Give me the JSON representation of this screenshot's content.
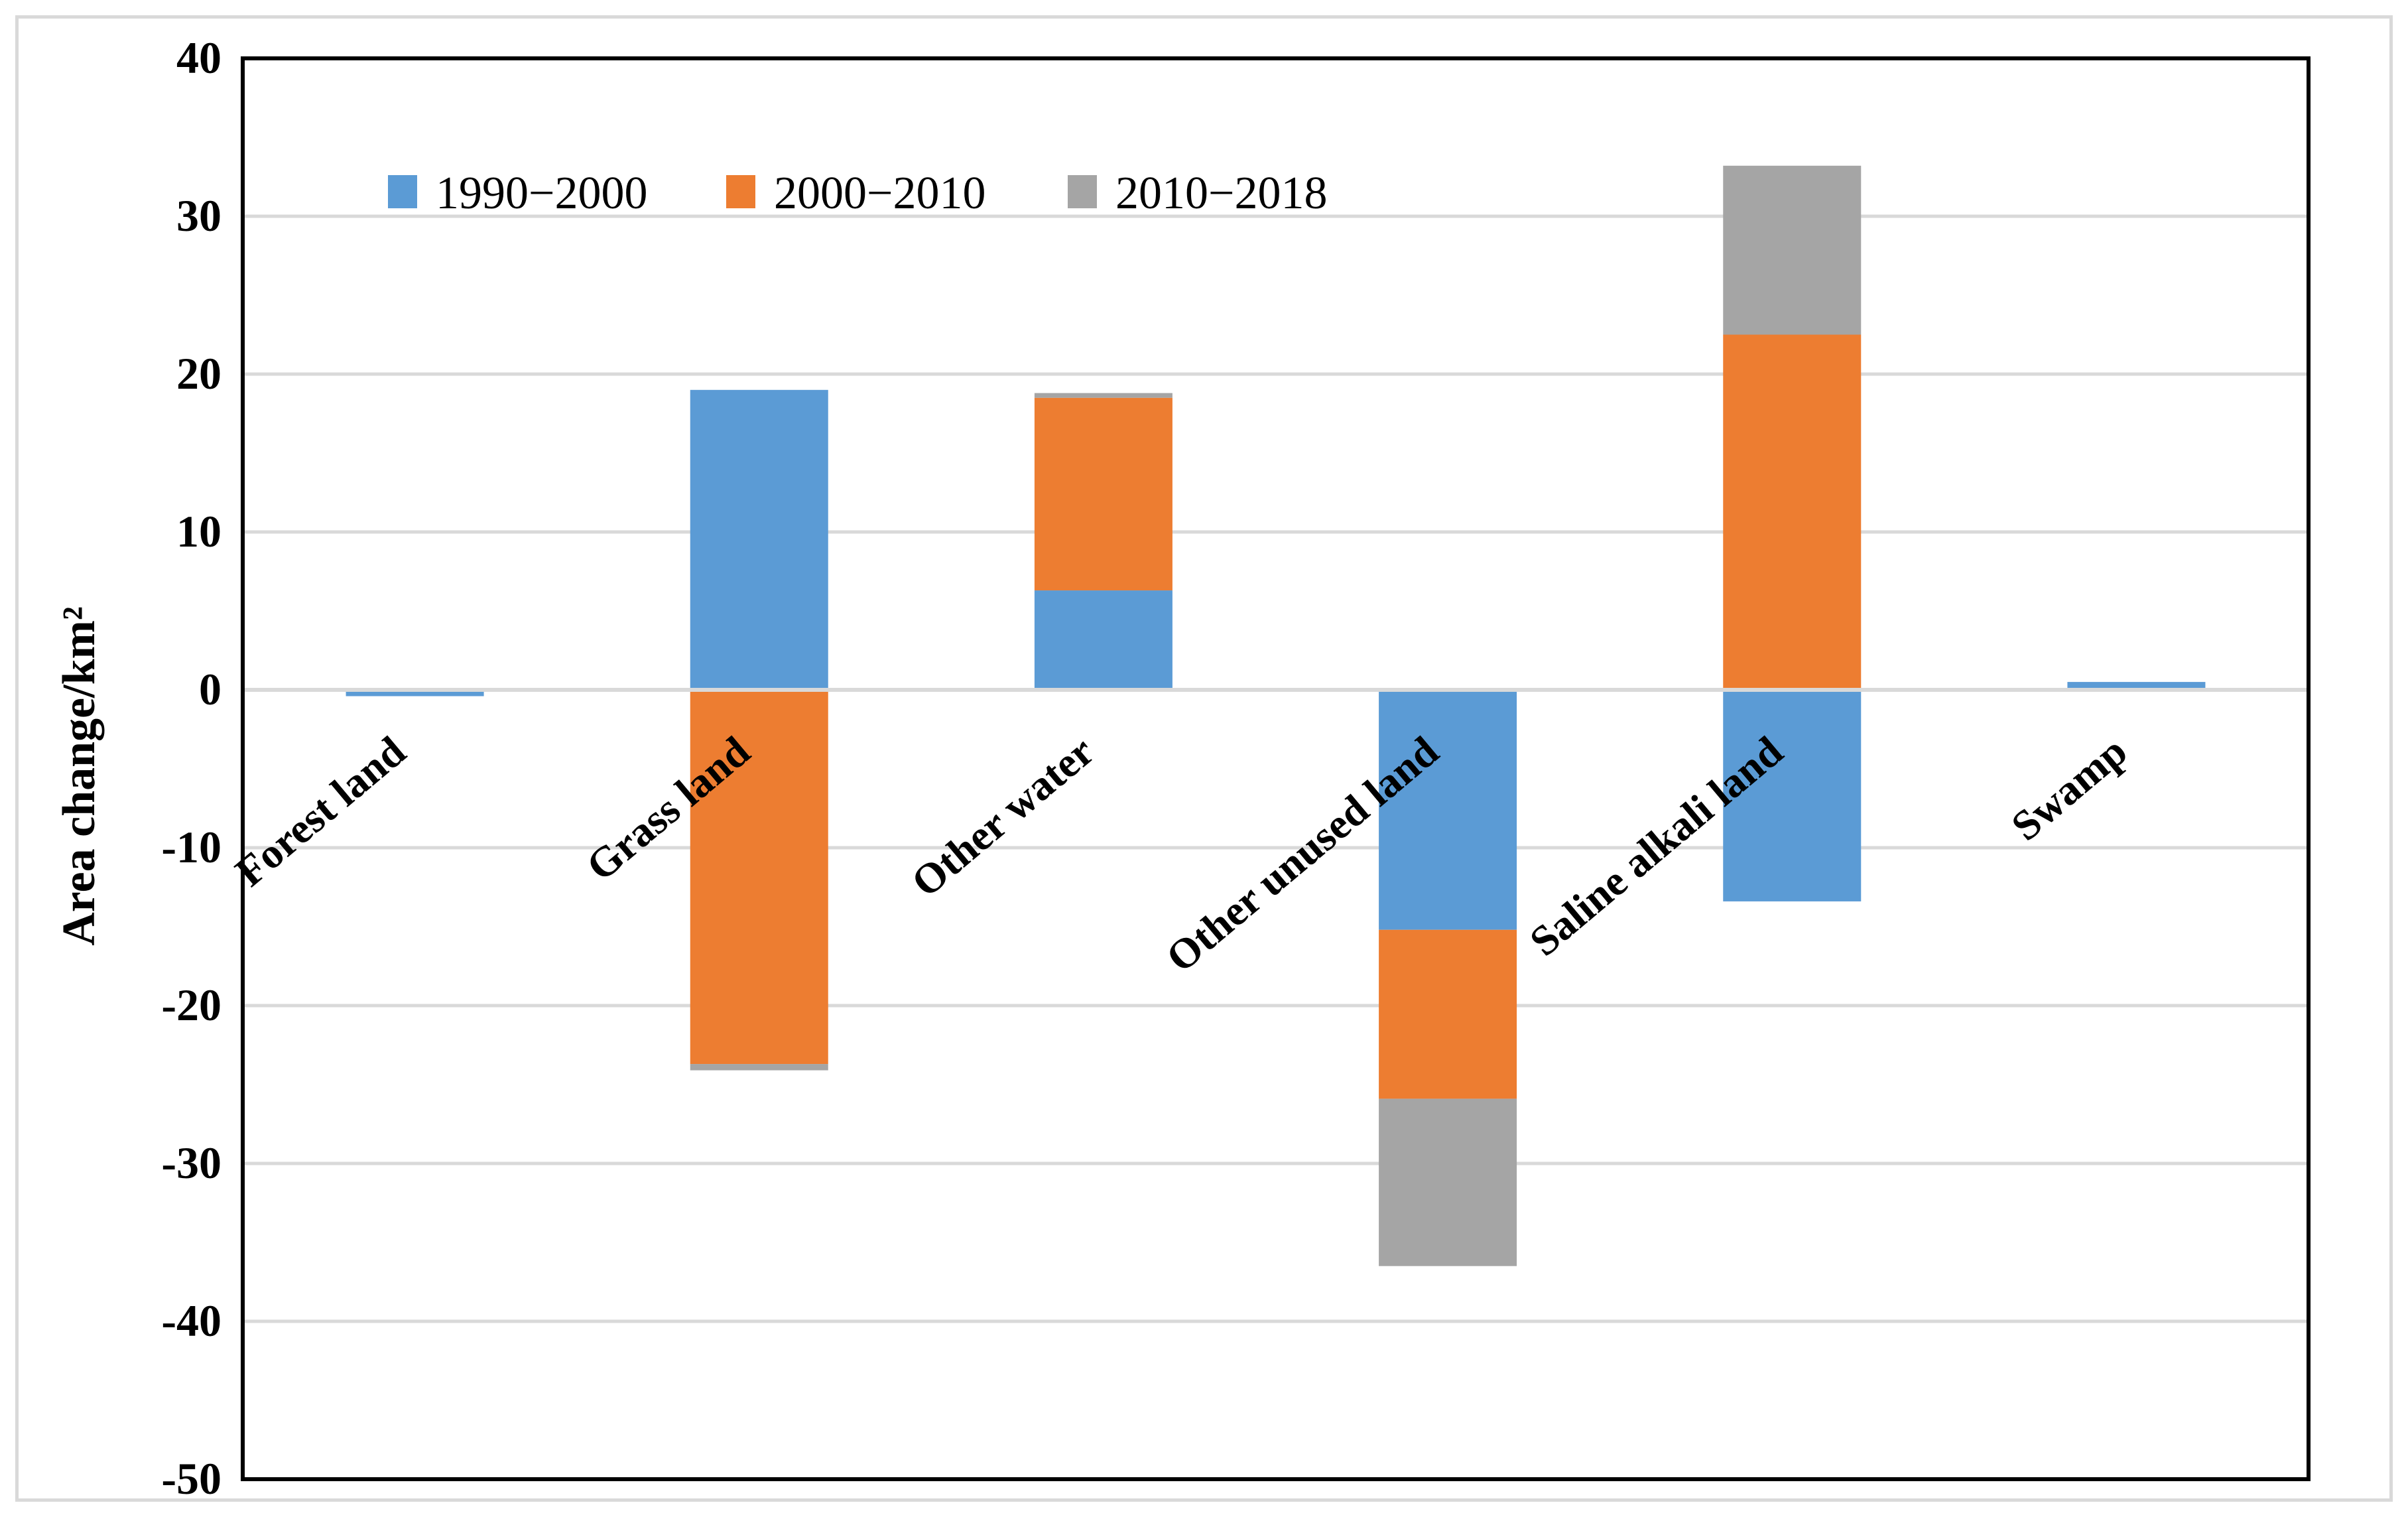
{
  "chart_data": {
    "type": "bar",
    "stacked": true,
    "title": "",
    "xlabel": "",
    "ylabel": "Area change/km²",
    "ylim": [
      -50,
      40
    ],
    "yticks": [
      "40",
      "30",
      "20",
      "10",
      "0",
      "-10",
      "-20",
      "-30",
      "-40",
      "-50"
    ],
    "grid": true,
    "legend_placement": "top-left",
    "categories": [
      "Forest land",
      "Grass land",
      "Other water",
      "Other unused land",
      "Saline alkali land",
      "Swamp"
    ],
    "series": [
      {
        "name": "1990−2000",
        "color": "#5b9bd5",
        "values": [
          -0.4,
          19.0,
          6.3,
          -15.2,
          -13.4,
          0.5
        ]
      },
      {
        "name": "2000−2010",
        "color": "#ed7d31",
        "values": [
          0,
          -23.7,
          12.2,
          -10.7,
          22.5,
          0
        ]
      },
      {
        "name": "2010−2018",
        "color": "#a5a5a5",
        "values": [
          0,
          -0.4,
          0.3,
          -10.6,
          10.7,
          0
        ]
      }
    ]
  }
}
